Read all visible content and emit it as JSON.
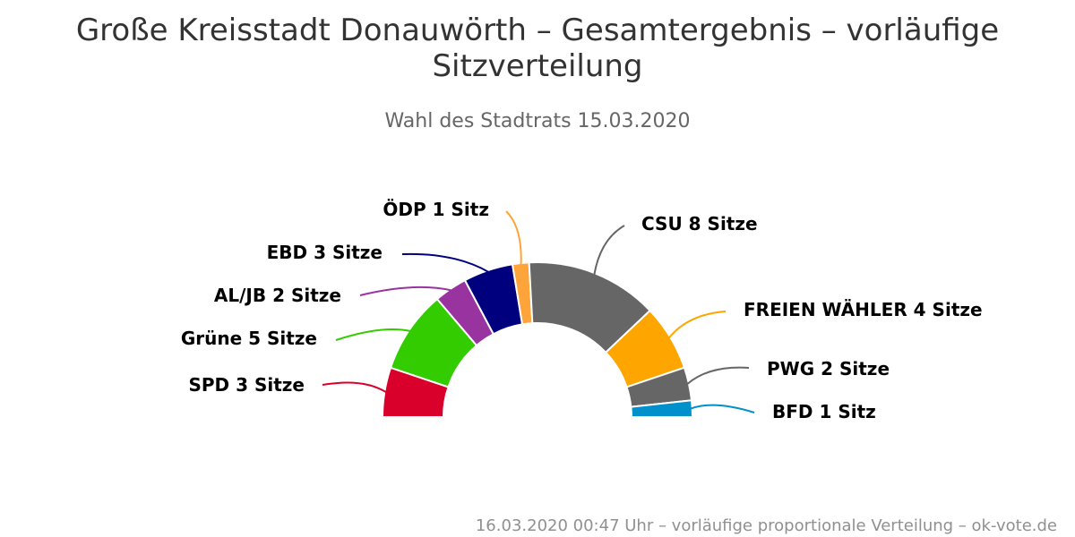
{
  "chart_data": {
    "type": "pie",
    "variant": "parliament-semicircle",
    "title": "Große Kreisstadt Donauwörth – Gesamtergebnis – vorläufige Sitzverteilung",
    "subtitle": "Wahl des Stadtrats 15.03.2020",
    "footer": "16.03.2020 00:47 Uhr – vorläufige proportionale Verteilung – ok-vote.de",
    "unit": "Sitze",
    "series": [
      {
        "name": "SPD",
        "value": 3,
        "color": "#d9002b",
        "label": "SPD 3 Sitze"
      },
      {
        "name": "Grüne",
        "value": 5,
        "color": "#33cc00",
        "label": "Grüne 5 Sitze"
      },
      {
        "name": "AL/JB",
        "value": 2,
        "color": "#9933a0",
        "label": "AL/JB 2 Sitze"
      },
      {
        "name": "EBD",
        "value": 3,
        "color": "#00007f",
        "label": "EBD 3 Sitze"
      },
      {
        "name": "ÖDP",
        "value": 1,
        "color": "#ffa43a",
        "label": "ÖDP 1 Sitz"
      },
      {
        "name": "CSU",
        "value": 8,
        "color": "#666666",
        "label": "CSU 8 Sitze"
      },
      {
        "name": "FREIEN WÄHLER",
        "value": 4,
        "color": "#ffa500",
        "label": "FREIEN WÄHLER 4 Sitze"
      },
      {
        "name": "PWG",
        "value": 2,
        "color": "#666666",
        "label": "PWG 2 Sitze"
      },
      {
        "name": "BFD",
        "value": 1,
        "color": "#0090cc",
        "label": "BFD 1 Sitz"
      }
    ]
  }
}
